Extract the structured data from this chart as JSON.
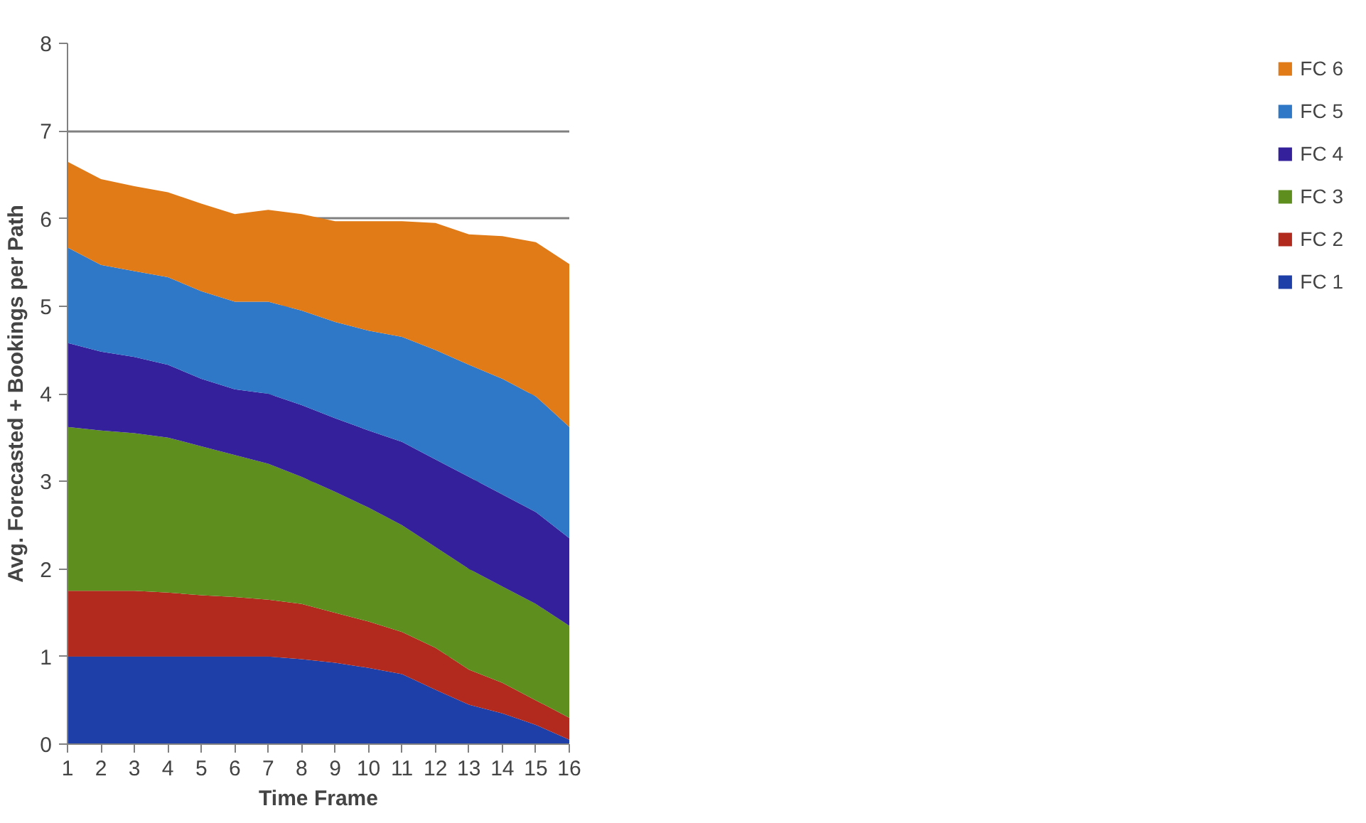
{
  "chart_data": {
    "type": "area",
    "stacked": true,
    "xlabel": "Time Frame",
    "ylabel": "Avg. Forecasted + Bookings per Path",
    "x": [
      1,
      2,
      3,
      4,
      5,
      6,
      7,
      8,
      9,
      10,
      11,
      12,
      13,
      14,
      15,
      16
    ],
    "xlim": [
      1,
      16
    ],
    "xticks": [
      1,
      2,
      3,
      4,
      5,
      6,
      7,
      8,
      9,
      10,
      11,
      12,
      13,
      14,
      15,
      16
    ],
    "ylim": [
      0,
      8
    ],
    "yticks": [
      0,
      1,
      2,
      3,
      4,
      5,
      6,
      7,
      8
    ],
    "grid": "y",
    "legend": "right",
    "series": [
      {
        "name": "FC 1",
        "color": "#1f3fa8",
        "values": [
          1,
          1,
          1,
          1,
          1,
          1,
          1,
          0.97,
          0.93,
          0.87,
          0.8,
          0.62,
          0.45,
          0.35,
          0.22,
          0.05
        ]
      },
      {
        "name": "FC 2",
        "color": "#b22a1e",
        "values": [
          0.75,
          0.75,
          0.75,
          0.73,
          0.7,
          0.68,
          0.65,
          0.63,
          0.57,
          0.53,
          0.48,
          0.48,
          0.4,
          0.35,
          0.28,
          0.25
        ]
      },
      {
        "name": "FC 3",
        "color": "#5e8f1e",
        "values": [
          1.87,
          1.83,
          1.8,
          1.77,
          1.7,
          1.62,
          1.55,
          1.45,
          1.38,
          1.3,
          1.22,
          1.15,
          1.15,
          1.1,
          1.1,
          1.05
        ]
      },
      {
        "name": "FC 4",
        "color": "#33209a",
        "values": [
          0.96,
          0.9,
          0.87,
          0.83,
          0.77,
          0.75,
          0.8,
          0.82,
          0.84,
          0.88,
          0.95,
          1.0,
          1.05,
          1.05,
          1.05,
          1.0
        ]
      },
      {
        "name": "FC 5",
        "color": "#2f78c8",
        "values": [
          1.09,
          0.99,
          0.98,
          1.0,
          1.0,
          1.0,
          1.05,
          1.08,
          1.1,
          1.14,
          1.2,
          1.25,
          1.28,
          1.32,
          1.32,
          1.27
        ]
      },
      {
        "name": "FC 6",
        "color": "#e07b18",
        "values": [
          0.98,
          0.98,
          0.97,
          0.97,
          1.0,
          1.0,
          1.05,
          1.1,
          1.15,
          1.25,
          1.32,
          1.45,
          1.49,
          1.63,
          1.76,
          1.86
        ]
      }
    ]
  }
}
